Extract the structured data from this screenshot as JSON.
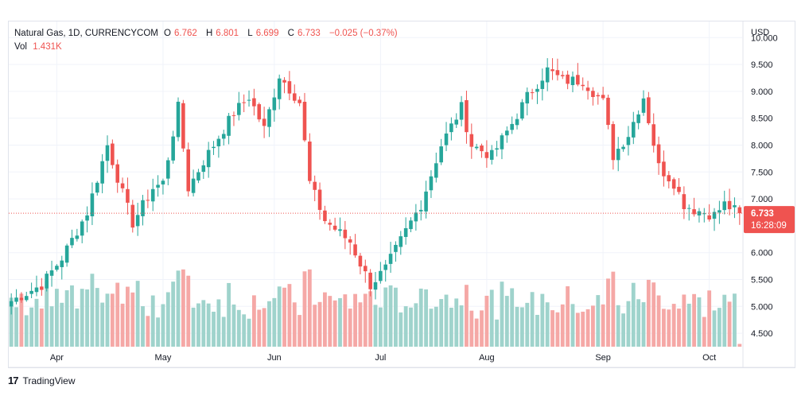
{
  "legend": {
    "symbol": "Natural Gas, 1D, CURRENCYCOM",
    "o_label": "O",
    "o_value": "6.762",
    "h_label": "H",
    "h_value": "6.801",
    "l_label": "L",
    "l_value": "6.699",
    "c_label": "C",
    "c_value": "6.733",
    "change": "−0.025 (−0.37%)",
    "vol_label": "Vol",
    "vol_value": "1.431K"
  },
  "currency": "USD",
  "price_tag": {
    "price": "6.733",
    "countdown": "16:28:09"
  },
  "brand": "TradingView",
  "colors": {
    "up": "#26a69a",
    "down": "#ef5350",
    "vol_up": "#9fd3cc",
    "vol_down": "#f5a8a6",
    "grid": "#f0f3fa"
  },
  "chart_data": {
    "type": "candlestick",
    "ylim": [
      4.25,
      10.3
    ],
    "y_ticks": [
      "10.000",
      "9.500",
      "9.000",
      "8.500",
      "8.000",
      "7.500",
      "7.000",
      "6.000",
      "5.500",
      "5.000",
      "4.500"
    ],
    "y_tick_values": [
      10.0,
      9.5,
      9.0,
      8.5,
      8.0,
      7.5,
      7.0,
      6.0,
      5.5,
      5.0,
      4.5
    ],
    "x_ticks": [
      {
        "label": "Apr",
        "index": 9
      },
      {
        "label": "May",
        "index": 30
      },
      {
        "label": "Jun",
        "index": 52
      },
      {
        "label": "Jul",
        "index": 73
      },
      {
        "label": "Aug",
        "index": 94
      },
      {
        "label": "Sep",
        "index": 117
      },
      {
        "label": "Oct",
        "index": 138
      }
    ],
    "last_close": 6.733,
    "waypoints": [
      [
        0,
        5.1
      ],
      [
        6,
        5.4
      ],
      [
        10,
        5.9
      ],
      [
        15,
        6.75
      ],
      [
        19,
        8.0
      ],
      [
        22,
        7.1
      ],
      [
        24,
        6.55
      ],
      [
        28,
        7.2
      ],
      [
        30,
        7.3
      ],
      [
        33,
        8.7
      ],
      [
        35,
        7.2
      ],
      [
        38,
        7.7
      ],
      [
        44,
        8.6
      ],
      [
        47,
        8.9
      ],
      [
        50,
        8.3
      ],
      [
        53,
        9.3
      ],
      [
        57,
        8.8
      ],
      [
        59,
        7.3
      ],
      [
        62,
        6.6
      ],
      [
        67,
        6.2
      ],
      [
        71,
        5.4
      ],
      [
        74,
        5.7
      ],
      [
        78,
        6.4
      ],
      [
        81,
        6.9
      ],
      [
        85,
        8.0
      ],
      [
        89,
        8.7
      ],
      [
        91,
        8.0
      ],
      [
        95,
        7.8
      ],
      [
        99,
        8.4
      ],
      [
        102,
        8.9
      ],
      [
        106,
        9.4
      ],
      [
        109,
        9.2
      ],
      [
        113,
        9.2
      ],
      [
        117,
        8.8
      ],
      [
        119,
        7.8
      ],
      [
        122,
        8.2
      ],
      [
        125,
        8.9
      ],
      [
        128,
        7.6
      ],
      [
        131,
        7.3
      ],
      [
        133,
        6.9
      ],
      [
        135,
        6.8
      ],
      [
        139,
        6.7
      ],
      [
        141,
        6.9
      ],
      [
        144,
        6.73
      ]
    ],
    "volume_ylim": [
      0,
      1.2
    ]
  }
}
